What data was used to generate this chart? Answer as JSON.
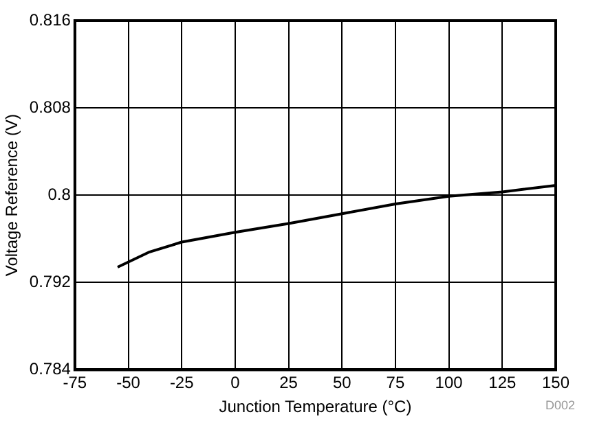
{
  "chart_data": {
    "type": "line",
    "xlabel": "Junction Temperature (°C)",
    "ylabel": "Voltage Reference (V)",
    "x": [
      -55,
      -40,
      -25,
      0,
      25,
      50,
      75,
      100,
      125,
      150
    ],
    "series": [
      {
        "color": "#000000",
        "values": [
          0.7934,
          0.7948,
          0.7957,
          0.7966,
          0.7974,
          0.7983,
          0.7992,
          0.7999,
          0.8003,
          0.8009
        ]
      }
    ],
    "xlim": [
      -75,
      150
    ],
    "xticks": [
      -75,
      -50,
      -25,
      0,
      25,
      50,
      75,
      100,
      125,
      150
    ],
    "ylim": [
      0.784,
      0.816
    ],
    "yticks": [
      0.784,
      0.792,
      0.8,
      0.808,
      0.816
    ],
    "grid": true,
    "legend": false,
    "marker": "none",
    "line_style": "solid",
    "annotations": [
      "D002"
    ]
  }
}
